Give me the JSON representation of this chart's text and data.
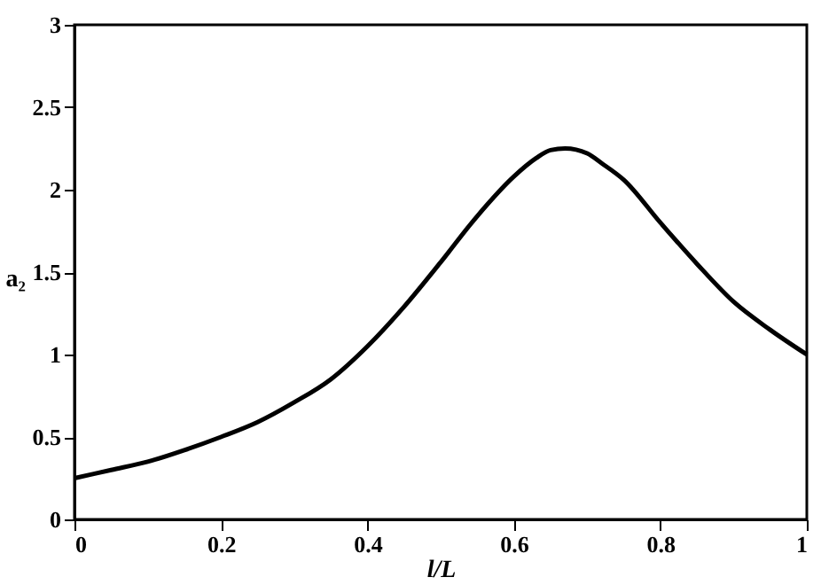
{
  "chart_data": {
    "type": "line",
    "xlabel": "l/L",
    "ylabel": "a₂",
    "x": [
      0,
      0.05,
      0.1,
      0.15,
      0.2,
      0.25,
      0.3,
      0.35,
      0.4,
      0.45,
      0.5,
      0.55,
      0.6,
      0.63,
      0.65,
      0.67,
      0.7,
      0.72,
      0.75,
      0.8,
      0.85,
      0.9,
      0.95,
      1
    ],
    "series": [
      {
        "color": "#000000",
        "values": [
          0.25,
          0.3,
          0.35,
          0.42,
          0.5,
          0.59,
          0.71,
          0.85,
          1.05,
          1.29,
          1.56,
          1.84,
          2.08,
          2.19,
          2.24,
          2.25,
          2.22,
          2.16,
          2.06,
          1.8,
          1.55,
          1.32,
          1.15,
          1.0
        ]
      }
    ],
    "xlim": [
      0,
      1
    ],
    "xticks": [
      0,
      0.2,
      0.4,
      0.6,
      0.8,
      1
    ],
    "ylim": [
      0,
      3
    ],
    "yticks": [
      0,
      0.5,
      1,
      1.5,
      2,
      2.5,
      3
    ],
    "grid": false,
    "marker": "none",
    "line_style": "solid"
  }
}
